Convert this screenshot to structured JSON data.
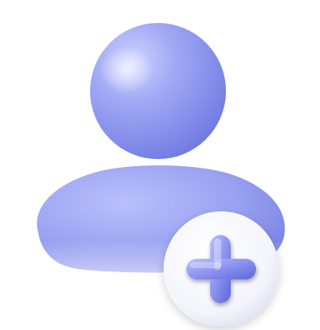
{
  "icon": {
    "semantic": "add-user-icon",
    "parts": [
      "user-head",
      "user-body",
      "plus-badge"
    ],
    "colors": {
      "body_light": "#c7ccfb",
      "body_mid": "#9aa2f2",
      "body_dark": "#6f78e0",
      "badge_light": "#ffffff",
      "badge_shadow": "#dfe2f2",
      "plus_light": "#b4bcff",
      "plus_dark": "#5f69dc",
      "background": "#ffffff"
    }
  }
}
